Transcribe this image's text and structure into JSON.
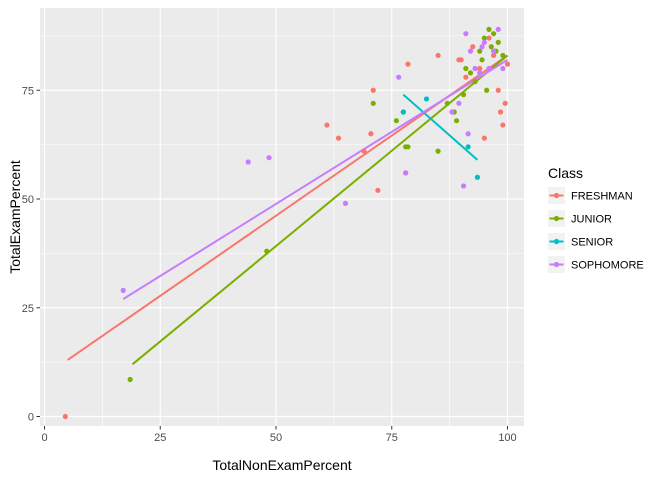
{
  "chart_data": {
    "type": "scatter",
    "xlabel": "TotalNonExamPercent",
    "ylabel": "TotalExamPercent",
    "xlim": [
      0,
      100
    ],
    "ylim": [
      0,
      87
    ],
    "x_ticks": [
      0,
      25,
      50,
      75,
      100
    ],
    "y_ticks": [
      0,
      25,
      50,
      75
    ],
    "grid": true,
    "legend": {
      "title": "Class",
      "placement": "right"
    },
    "series": [
      {
        "name": "FRESHMAN",
        "color": "#F8766D",
        "points": [
          [
            4.5,
            0
          ],
          [
            61,
            67
          ],
          [
            63.5,
            64
          ],
          [
            69,
            61
          ],
          [
            70.5,
            65
          ],
          [
            71,
            75
          ],
          [
            72,
            52
          ],
          [
            78,
            56
          ],
          [
            78.5,
            81
          ],
          [
            85,
            83
          ],
          [
            89.5,
            82
          ],
          [
            90,
            82
          ],
          [
            91,
            78
          ],
          [
            92.5,
            85
          ],
          [
            94,
            80
          ],
          [
            95,
            64
          ],
          [
            96,
            87
          ],
          [
            97,
            83
          ],
          [
            98,
            75
          ],
          [
            98.5,
            70
          ],
          [
            99,
            67
          ],
          [
            99.5,
            72
          ],
          [
            100,
            81
          ],
          [
            93,
            77
          ]
        ],
        "trend": [
          [
            5,
            13
          ],
          [
            100,
            83
          ]
        ]
      },
      {
        "name": "JUNIOR",
        "color": "#7CAE00",
        "points": [
          [
            18.5,
            8.5
          ],
          [
            48,
            38
          ],
          [
            71,
            72
          ],
          [
            76,
            68
          ],
          [
            77.5,
            70
          ],
          [
            78,
            62
          ],
          [
            78.5,
            62
          ],
          [
            85,
            61
          ],
          [
            87,
            72
          ],
          [
            88.5,
            70
          ],
          [
            89,
            68
          ],
          [
            90.5,
            74
          ],
          [
            91,
            80
          ],
          [
            92,
            79
          ],
          [
            93,
            77
          ],
          [
            94,
            84
          ],
          [
            94.5,
            82
          ],
          [
            95,
            87
          ],
          [
            95.5,
            75
          ],
          [
            96,
            89
          ],
          [
            96.5,
            85
          ],
          [
            97,
            88
          ],
          [
            97.5,
            84
          ],
          [
            98,
            86
          ],
          [
            99,
            83
          ]
        ],
        "trend": [
          [
            19,
            12
          ],
          [
            100,
            83
          ]
        ]
      },
      {
        "name": "SENIOR",
        "color": "#00BFC4",
        "points": [
          [
            77.5,
            70
          ],
          [
            82.5,
            73
          ],
          [
            91.5,
            62
          ],
          [
            93.5,
            55
          ]
        ],
        "trend": [
          [
            77.5,
            74
          ],
          [
            93.5,
            59
          ]
        ]
      },
      {
        "name": "SOPHOMORE",
        "color": "#C77CFF",
        "points": [
          [
            17,
            29
          ],
          [
            44,
            58.5
          ],
          [
            48.5,
            59.5
          ],
          [
            65,
            49
          ],
          [
            76.5,
            78
          ],
          [
            78,
            56
          ],
          [
            88,
            70
          ],
          [
            89.5,
            72
          ],
          [
            90.5,
            53
          ],
          [
            91,
            88
          ],
          [
            91.5,
            65
          ],
          [
            92,
            84
          ],
          [
            93,
            80
          ],
          [
            94,
            79
          ],
          [
            94.5,
            85
          ],
          [
            95,
            86
          ],
          [
            96,
            80
          ],
          [
            97,
            84
          ],
          [
            98,
            89
          ],
          [
            99,
            80
          ]
        ],
        "trend": [
          [
            17,
            27
          ],
          [
            100,
            82
          ]
        ]
      }
    ]
  }
}
